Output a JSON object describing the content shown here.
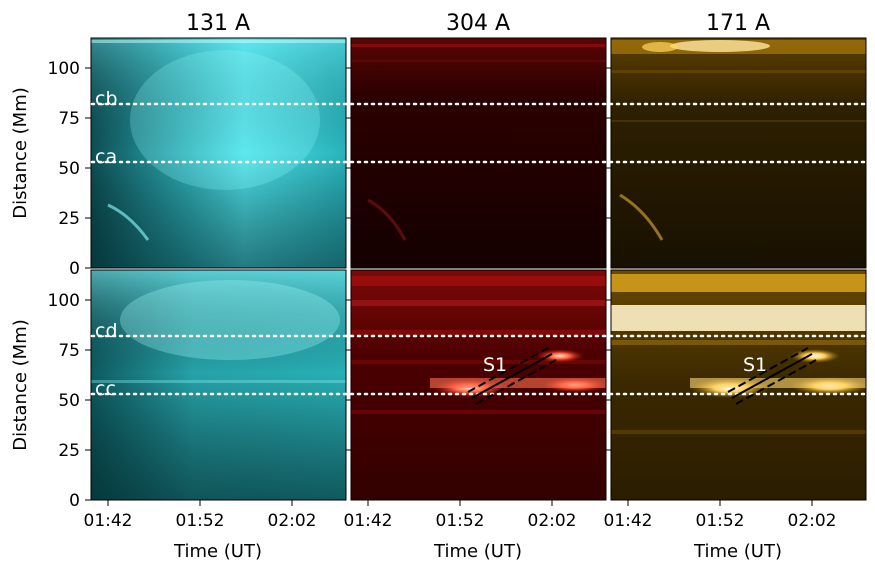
{
  "titles": [
    "131 A",
    "304 A",
    "171 A"
  ],
  "y_axis": {
    "label": "Distance (Mm)",
    "range": [
      0,
      115
    ],
    "ticks": [
      "0",
      "25",
      "50",
      "75",
      "100"
    ],
    "tick_values": [
      0,
      25,
      50,
      75,
      100
    ]
  },
  "x_axis": {
    "label": "Time (UT)",
    "ticks": [
      "01:42",
      "01:52",
      "02:02"
    ]
  },
  "markers": {
    "top_row": [
      {
        "label": "cb",
        "distance": 82
      },
      {
        "label": "ca",
        "distance": 53
      }
    ],
    "bottom_row": [
      {
        "label": "cd",
        "distance": 82
      },
      {
        "label": "cc",
        "distance": 53
      }
    ]
  },
  "slit_label": "S1",
  "colors": {
    "aia131": "#16c8c8",
    "aia304": "#b00000",
    "aia171": "#e0a000",
    "marker": "#ffffff",
    "slit": "#000000"
  }
}
